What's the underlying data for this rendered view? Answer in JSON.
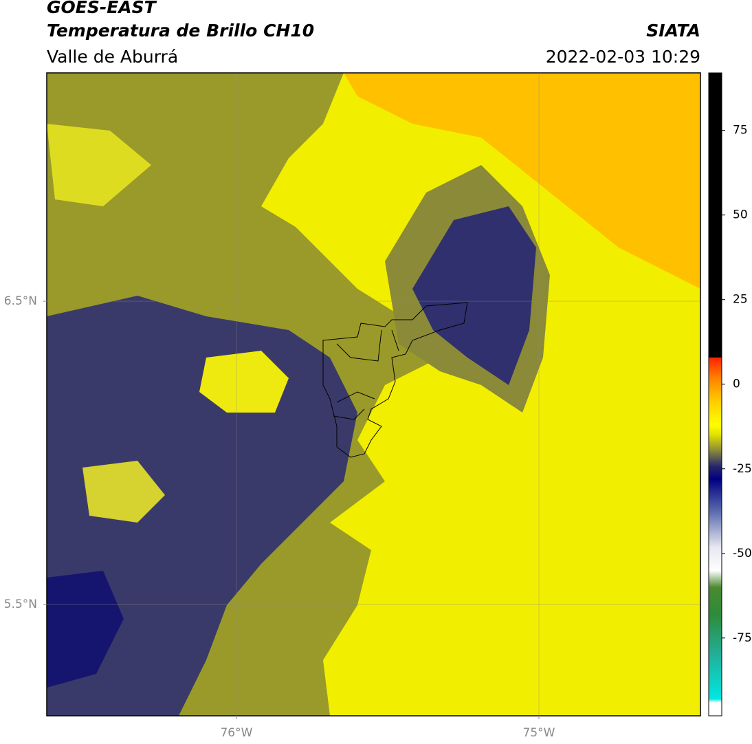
{
  "header": {
    "title": "GOES-EAST",
    "subtitle": "Temperatura de Brillo CH10",
    "region": "Valle de Aburrá",
    "source": "SIATA",
    "datetime": "2022-02-03 10:29"
  },
  "map": {
    "xlim": [
      -76.627,
      -74.466
    ],
    "ylim": [
      5.133,
      7.253
    ],
    "xticks": [
      {
        "value": -76,
        "label": "76°W"
      },
      {
        "value": -75,
        "label": "75°W"
      }
    ],
    "yticks": [
      {
        "value": 5.5,
        "label": "5.5°N"
      },
      {
        "value": 6.5,
        "label": "6.5°N"
      }
    ],
    "grid": true
  },
  "colorbar": {
    "lim": [
      -98,
      92
    ],
    "ticks": [
      -75,
      -50,
      -25,
      0,
      25,
      50,
      75
    ],
    "stops": [
      {
        "value": -98,
        "color": "#ffffff"
      },
      {
        "value": -94,
        "color": "#ffffff"
      },
      {
        "value": -93,
        "color": "#00e8e0"
      },
      {
        "value": -80,
        "color": "#22b09a"
      },
      {
        "value": -68,
        "color": "#2e8b3a"
      },
      {
        "value": -60,
        "color": "#4a8a30"
      },
      {
        "value": -55,
        "color": "#ffffff"
      },
      {
        "value": -48,
        "color": "#e6e6f0"
      },
      {
        "value": -38,
        "color": "#6070b0"
      },
      {
        "value": -28,
        "color": "#000080"
      },
      {
        "value": -24,
        "color": "#2a2a6a"
      },
      {
        "value": -20,
        "color": "#808040"
      },
      {
        "value": -15,
        "color": "#e0e000"
      },
      {
        "value": -12,
        "color": "#ffff00"
      },
      {
        "value": -5,
        "color": "#ffcc00"
      },
      {
        "value": 2,
        "color": "#ff8000"
      },
      {
        "value": 8,
        "color": "#ff2000"
      },
      {
        "value": 8,
        "color": "#000000"
      },
      {
        "value": 92,
        "color": "#000000"
      }
    ]
  }
}
